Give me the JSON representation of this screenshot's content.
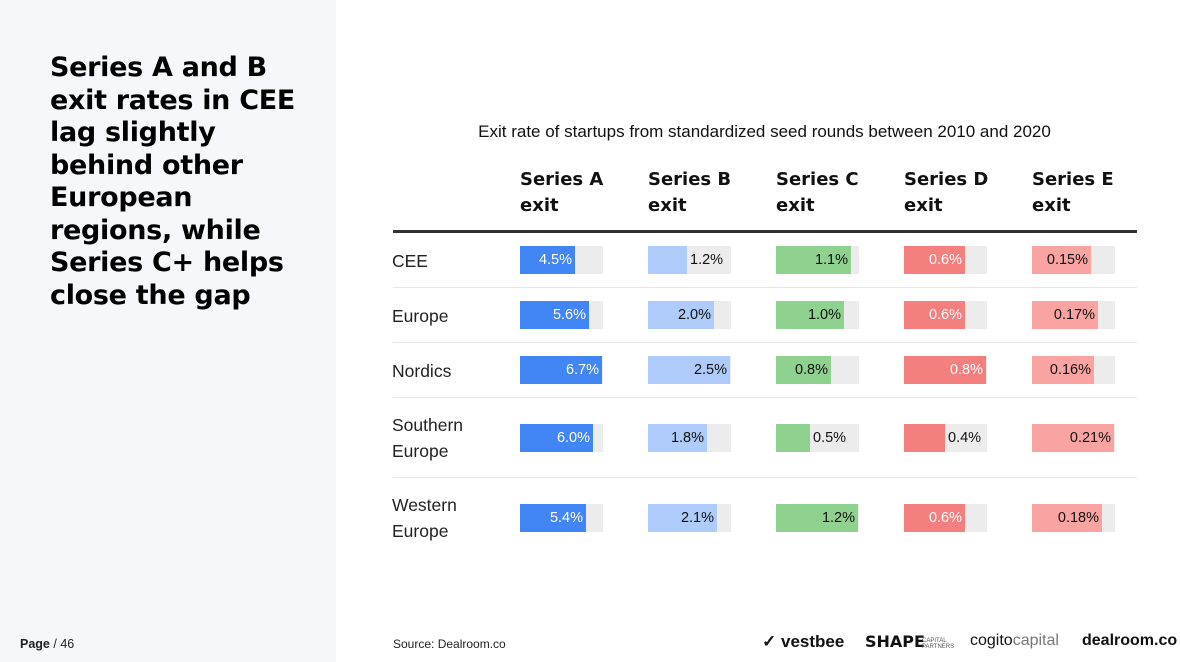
{
  "headline": "Series A and B exit rates in CEE lag slightly behind other European regions, while Series C+ helps close the gap",
  "page": {
    "label": "Page",
    "number": "/ 46"
  },
  "source": "Source:  Dealroom.co",
  "logos": {
    "vestbee": "vestbee",
    "shape": "SHAPE",
    "shape_sub1": "CAPITAL",
    "shape_sub2": "PARTNERS",
    "cogito_a": "cogito",
    "cogito_b": "capital",
    "dealroom": "dealroom.co"
  },
  "chart_data": {
    "type": "table",
    "title": "Exit rate of startups from standardized seed rounds between 2010 and 2020",
    "columns": [
      {
        "line1": "Series A",
        "line2": "exit",
        "color": "#4285f4",
        "max": 6.7
      },
      {
        "line1": "Series B",
        "line2": "exit",
        "color": "#aecbfa",
        "max": 2.5
      },
      {
        "line1": "Series C",
        "line2": "exit",
        "color": "#8fd18f",
        "max": 1.2
      },
      {
        "line1": "Series D",
        "line2": "exit",
        "color": "#f47f7f",
        "max": 0.8
      },
      {
        "line1": "Series E",
        "line2": "exit",
        "color": "#f9a3a3",
        "max": 0.21
      }
    ],
    "rows": [
      {
        "line1": "CEE",
        "line2": "",
        "values": [
          4.5,
          1.2,
          1.1,
          0.6,
          0.15
        ],
        "labels": [
          "4.5%",
          "1.2%",
          "1.1%",
          "0.6%",
          "0.15%"
        ]
      },
      {
        "line1": "Europe",
        "line2": "",
        "values": [
          5.6,
          2.0,
          1.0,
          0.6,
          0.17
        ],
        "labels": [
          "5.6%",
          "2.0%",
          "1.0%",
          "0.6%",
          "0.17%"
        ]
      },
      {
        "line1": "Nordics",
        "line2": "",
        "values": [
          6.7,
          2.5,
          0.8,
          0.8,
          0.16
        ],
        "labels": [
          "6.7%",
          "2.5%",
          "0.8%",
          "0.8%",
          "0.16%"
        ]
      },
      {
        "line1": "Southern",
        "line2": "Europe",
        "values": [
          6.0,
          1.8,
          0.5,
          0.4,
          0.21
        ],
        "labels": [
          "6.0%",
          "1.8%",
          "0.5%",
          "0.4%",
          "0.21%"
        ]
      },
      {
        "line1": "Western",
        "line2": "Europe",
        "values": [
          5.4,
          2.1,
          1.2,
          0.6,
          0.18
        ],
        "labels": [
          "5.4%",
          "2.1%",
          "1.2%",
          "0.6%",
          "0.18%"
        ]
      }
    ]
  }
}
